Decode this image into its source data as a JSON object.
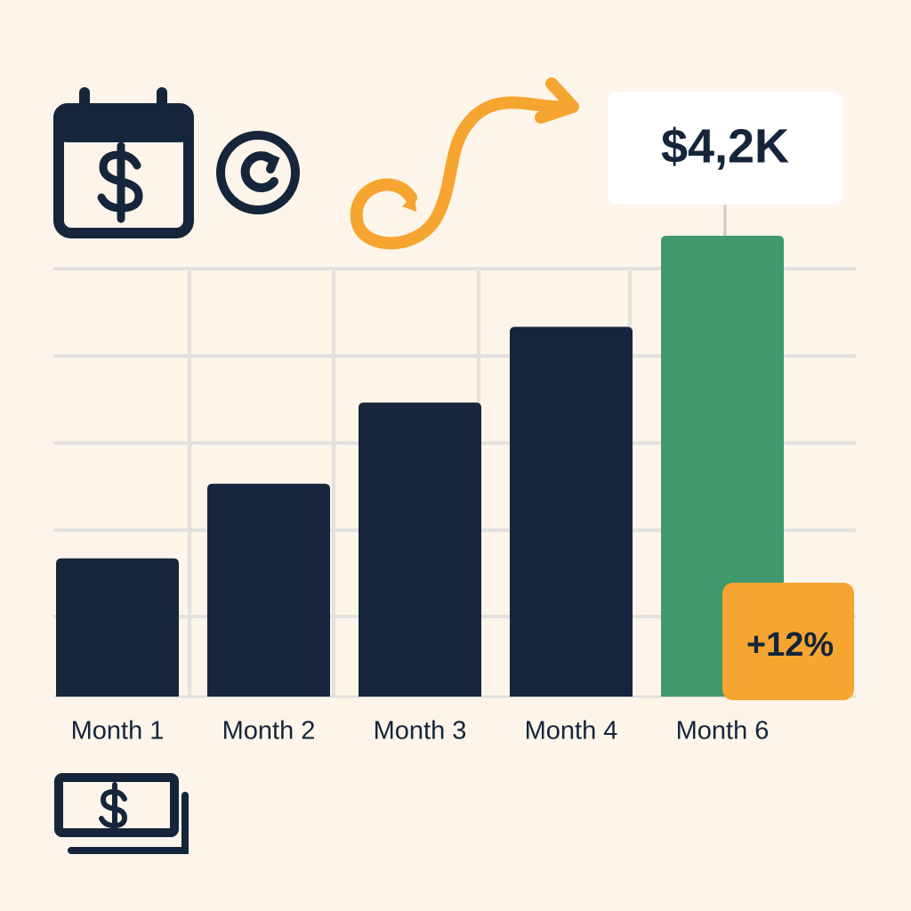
{
  "chart_data": {
    "type": "bar",
    "categories": [
      "Month 1",
      "Month 2",
      "Month 3",
      "Month 4",
      "Month 6"
    ],
    "values": [
      1260,
      1940,
      2680,
      3370,
      4200
    ],
    "value_labels": [
      null,
      null,
      null,
      null,
      "$4,2K"
    ],
    "colors": [
      "#15253b",
      "#15253b",
      "#15253b",
      "#15253b",
      "#3f996d"
    ],
    "ylim": [
      0,
      4200
    ],
    "annotation": "+12%"
  }
}
